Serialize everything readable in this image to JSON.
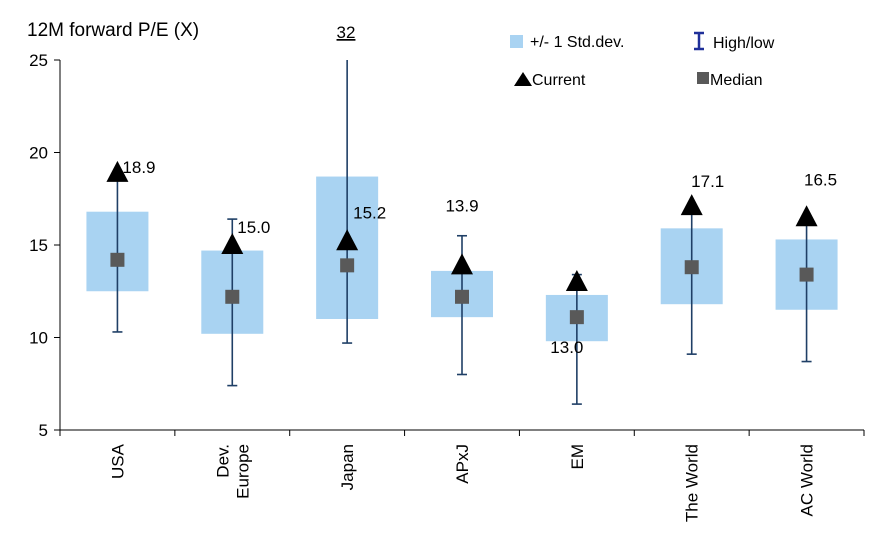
{
  "chart_data": {
    "type": "boxplot",
    "title": "12M forward P/E (X)",
    "ylim": [
      5,
      25
    ],
    "yticks": [
      "5",
      "10",
      "15",
      "20",
      "25"
    ],
    "categories": [
      {
        "label": [
          "USA"
        ],
        "std_low": 12.5,
        "std_high": 16.8,
        "low": 10.3,
        "high": 18.9,
        "median": 14.2,
        "current": 18.9,
        "current_label": "18.9"
      },
      {
        "label": [
          "Dev.",
          "Europe"
        ],
        "std_low": 10.2,
        "std_high": 14.7,
        "low": 7.4,
        "high": 16.4,
        "median": 12.2,
        "current": 15.0,
        "current_label": "15.0"
      },
      {
        "label": [
          "Japan"
        ],
        "std_low": 11.0,
        "std_high": 18.7,
        "low": 9.7,
        "high": 32,
        "median": 13.9,
        "current": 15.2,
        "current_label": "15.2"
      },
      {
        "label": [
          "APxJ"
        ],
        "std_low": 11.1,
        "std_high": 13.6,
        "low": 8.0,
        "high": 15.5,
        "median": 12.2,
        "current": 13.9,
        "current_label": "13.9"
      },
      {
        "label": [
          "EM"
        ],
        "std_low": 9.8,
        "std_high": 12.3,
        "low": 6.4,
        "high": 13.4,
        "median": 11.1,
        "current": 13.0,
        "current_label": "13.0"
      },
      {
        "label": [
          "The World"
        ],
        "std_low": 11.8,
        "std_high": 15.9,
        "low": 9.1,
        "high": 17.1,
        "median": 13.8,
        "current": 17.1,
        "current_label": "17.1"
      },
      {
        "label": [
          "AC World"
        ],
        "std_low": 11.5,
        "std_high": 15.3,
        "low": 8.7,
        "high": 16.5,
        "median": 13.4,
        "current": 16.5,
        "current_label": "16.5"
      }
    ],
    "off_chart_annotation": "32",
    "legend": {
      "std": "+/- 1 Std.dev.",
      "highlow": "High/low",
      "current": "Current",
      "median": "Median"
    },
    "colors": {
      "std_fill": "#a9d3f2",
      "whisker": "#1f3f66",
      "median": "#595959",
      "current": "#000000",
      "highlow_legend": "#1f2f99"
    },
    "grid": false
  }
}
